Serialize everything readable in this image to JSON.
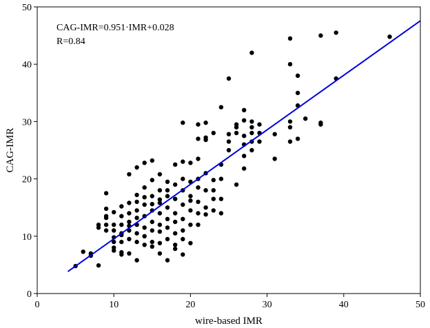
{
  "chart_data": {
    "type": "scatter",
    "title": "",
    "xlabel": "wire-based IMR",
    "ylabel": "CAG-IMR",
    "xlim": [
      0,
      50
    ],
    "ylim": [
      0,
      50
    ],
    "xticks": [
      0,
      10,
      20,
      30,
      40,
      50
    ],
    "yticks": [
      0,
      10,
      20,
      30,
      40,
      50
    ],
    "grid": false,
    "annotations": [
      "CAG-IMR=0.951·IMR+0.028",
      "R=0.84"
    ],
    "point_color": "#000000",
    "fit_line": {
      "slope": 0.951,
      "intercept": 0.028,
      "x_range": [
        4,
        50
      ],
      "color": "#0000dd"
    },
    "points": [
      [
        5,
        4.8
      ],
      [
        6,
        7.3
      ],
      [
        7,
        7.0
      ],
      [
        7,
        6.6
      ],
      [
        8,
        4.9
      ],
      [
        8,
        11.5
      ],
      [
        8,
        12.0
      ],
      [
        9,
        17.5
      ],
      [
        9,
        14.8
      ],
      [
        9,
        13.5
      ],
      [
        9,
        12.0
      ],
      [
        9,
        11.0
      ],
      [
        9,
        13.2
      ],
      [
        10,
        14.2
      ],
      [
        10,
        12.0
      ],
      [
        10,
        11.0
      ],
      [
        10,
        9.0
      ],
      [
        10,
        7.5
      ],
      [
        10,
        8.0
      ],
      [
        10,
        9.8
      ],
      [
        11,
        15.2
      ],
      [
        11,
        13.5
      ],
      [
        11,
        12.0
      ],
      [
        11,
        10.5
      ],
      [
        11,
        9.0
      ],
      [
        11,
        7.2
      ],
      [
        11,
        6.8
      ],
      [
        11,
        10.2
      ],
      [
        12,
        20.8
      ],
      [
        12,
        15.8
      ],
      [
        12,
        14.0
      ],
      [
        12,
        12.5
      ],
      [
        12,
        11.0
      ],
      [
        12,
        9.5
      ],
      [
        12,
        7.0
      ],
      [
        12,
        11.8
      ],
      [
        13,
        22.0
      ],
      [
        13,
        17.2
      ],
      [
        13,
        16.0
      ],
      [
        13,
        14.5
      ],
      [
        13,
        12.0
      ],
      [
        13,
        10.5
      ],
      [
        13,
        9.0
      ],
      [
        13,
        5.8
      ],
      [
        13,
        13.2
      ],
      [
        14,
        22.8
      ],
      [
        14,
        18.5
      ],
      [
        14,
        15.5
      ],
      [
        14,
        13.5
      ],
      [
        14,
        11.5
      ],
      [
        14,
        10.0
      ],
      [
        14,
        8.5
      ],
      [
        14,
        16.8
      ],
      [
        15,
        23.2
      ],
      [
        15,
        19.8
      ],
      [
        15,
        17.0
      ],
      [
        15,
        14.5
      ],
      [
        15,
        12.5
      ],
      [
        15,
        11.0
      ],
      [
        15,
        9.0
      ],
      [
        15,
        8.2
      ],
      [
        15,
        15.6
      ],
      [
        16,
        20.8
      ],
      [
        16,
        18.0
      ],
      [
        16,
        15.8
      ],
      [
        16,
        14.0
      ],
      [
        16,
        12.0
      ],
      [
        16,
        10.8
      ],
      [
        16,
        8.8
      ],
      [
        16,
        7.0
      ],
      [
        16,
        16.4
      ],
      [
        17,
        19.5
      ],
      [
        17,
        17.0
      ],
      [
        17,
        15.0
      ],
      [
        17,
        13.0
      ],
      [
        17,
        11.5
      ],
      [
        17,
        9.5
      ],
      [
        17,
        5.8
      ],
      [
        17,
        18.0
      ],
      [
        18,
        22.5
      ],
      [
        18,
        19.0
      ],
      [
        18,
        16.5
      ],
      [
        18,
        14.0
      ],
      [
        18,
        12.5
      ],
      [
        18,
        10.5
      ],
      [
        18,
        7.8
      ],
      [
        18,
        8.5
      ],
      [
        19,
        29.8
      ],
      [
        19,
        23.0
      ],
      [
        19,
        20.0
      ],
      [
        19,
        18.0
      ],
      [
        19,
        15.5
      ],
      [
        19,
        13.0
      ],
      [
        19,
        11.0
      ],
      [
        19,
        9.5
      ],
      [
        19,
        6.8
      ],
      [
        20,
        22.8
      ],
      [
        20,
        19.5
      ],
      [
        20,
        17.0
      ],
      [
        20,
        14.5
      ],
      [
        20,
        12.0
      ],
      [
        20,
        8.8
      ],
      [
        20,
        16.2
      ],
      [
        21,
        29.5
      ],
      [
        21,
        27.0
      ],
      [
        21,
        23.5
      ],
      [
        21,
        20.0
      ],
      [
        21,
        18.5
      ],
      [
        21,
        16.0
      ],
      [
        21,
        14.0
      ],
      [
        21,
        12.0
      ],
      [
        22,
        29.8
      ],
      [
        22,
        26.8
      ],
      [
        22,
        21.0
      ],
      [
        22,
        18.0
      ],
      [
        22,
        15.0
      ],
      [
        22,
        13.8
      ],
      [
        22,
        27.2
      ],
      [
        23,
        28.0
      ],
      [
        23,
        19.8
      ],
      [
        23,
        16.5
      ],
      [
        23,
        14.5
      ],
      [
        23,
        18.0
      ],
      [
        24,
        32.5
      ],
      [
        24,
        22.5
      ],
      [
        24,
        20.0
      ],
      [
        24,
        16.5
      ],
      [
        24,
        14.0
      ],
      [
        25,
        37.5
      ],
      [
        25,
        27.8
      ],
      [
        25,
        26.5
      ],
      [
        25,
        25.0
      ],
      [
        26,
        29.5
      ],
      [
        26,
        28.0
      ],
      [
        26,
        19.0
      ],
      [
        26,
        29.0
      ],
      [
        27,
        32.0
      ],
      [
        27,
        30.2
      ],
      [
        27,
        27.5
      ],
      [
        27,
        26.0
      ],
      [
        27,
        21.8
      ],
      [
        27,
        24.0
      ],
      [
        28,
        42.0
      ],
      [
        28,
        30.0
      ],
      [
        28,
        28.0
      ],
      [
        28,
        26.5
      ],
      [
        28,
        25.0
      ],
      [
        28,
        29.0
      ],
      [
        29,
        29.5
      ],
      [
        29,
        28.0
      ],
      [
        29,
        26.5
      ],
      [
        31,
        27.8
      ],
      [
        31,
        23.5
      ],
      [
        33,
        44.5
      ],
      [
        33,
        40.0
      ],
      [
        33,
        30.0
      ],
      [
        33,
        29.0
      ],
      [
        33,
        26.5
      ],
      [
        34,
        38.0
      ],
      [
        34,
        35.0
      ],
      [
        34,
        32.8
      ],
      [
        34,
        27.0
      ],
      [
        35,
        30.5
      ],
      [
        37,
        45.0
      ],
      [
        37,
        29.8
      ],
      [
        37,
        29.5
      ],
      [
        39,
        45.5
      ],
      [
        39,
        37.5
      ],
      [
        46,
        44.8
      ]
    ]
  }
}
